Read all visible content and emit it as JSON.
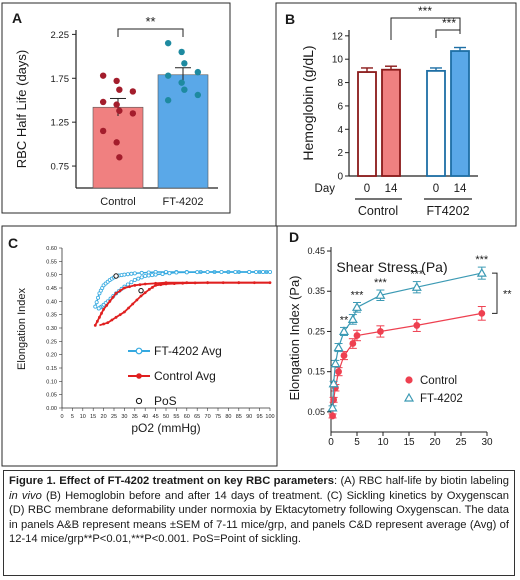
{
  "chart_data": [
    {
      "panel": "A",
      "type": "bar",
      "ylabel": "RBC Half Life (days)",
      "ylim": [
        0.5,
        2.3
      ],
      "yticks": [
        "0.75",
        "1.25",
        "1.75",
        "2.25"
      ],
      "categories": [
        "Control",
        "FT-4202"
      ],
      "values": [
        1.42,
        1.79
      ],
      "sem": [
        0.1,
        0.08
      ],
      "colors": [
        "#f08080",
        "#5aa8e8"
      ],
      "points": [
        [
          1.78,
          1.72,
          1.62,
          1.6,
          1.48,
          1.45,
          1.38,
          1.35,
          1.15,
          1.02,
          0.85
        ],
        [
          2.15,
          2.05,
          1.92,
          1.82,
          1.78,
          1.7,
          1.62,
          1.56,
          1.5
        ]
      ],
      "point_colors": [
        "#a31d2c",
        "#1e8aa0"
      ],
      "significance": "**"
    },
    {
      "panel": "B",
      "type": "bar",
      "ylabel": "Hemoglobin (g/dL)",
      "ylim": [
        0,
        12.5
      ],
      "yticks": [
        "0",
        "2",
        "4",
        "6",
        "8",
        "10",
        "12"
      ],
      "day_label": "Day",
      "categories": [
        "0",
        "14",
        "0",
        "14"
      ],
      "groups": [
        "Control",
        "FT4202"
      ],
      "values": [
        8.9,
        9.1,
        9.0,
        10.7
      ],
      "sem": [
        0.35,
        0.3,
        0.25,
        0.3
      ],
      "fill": [
        "#ffffff",
        "#f08080",
        "#ffffff",
        "#5aa8e8"
      ],
      "stroke": [
        "#8b1a1a",
        "#8b1a1a",
        "#1e6fa5",
        "#1e6fa5"
      ],
      "significance": [
        "***",
        "***"
      ]
    },
    {
      "panel": "C",
      "type": "line",
      "xlabel": "pO2 (mmHg)",
      "ylabel": "Elongation Index",
      "xlim": [
        0,
        100
      ],
      "ylim": [
        0,
        0.6
      ],
      "xticks": [
        "0",
        "5",
        "10",
        "15",
        "20",
        "25",
        "30",
        "35",
        "40",
        "45",
        "50",
        "55",
        "60",
        "65",
        "70",
        "75",
        "80",
        "85",
        "90",
        "95",
        "100"
      ],
      "yticks": [
        "0.00",
        "0.05",
        "0.10",
        "0.15",
        "0.20",
        "0.25",
        "0.30",
        "0.35",
        "0.40",
        "0.45",
        "0.50",
        "0.55",
        "0.60"
      ],
      "series": [
        {
          "name": "FT-4202 Avg",
          "color": "#35a9e0",
          "deoxygenation": [
            [
              16,
              0.38
            ],
            [
              18,
              0.43
            ],
            [
              20,
              0.46
            ],
            [
              23,
              0.48
            ],
            [
              26,
              0.495
            ],
            [
              30,
              0.5
            ],
            [
              35,
              0.505
            ],
            [
              45,
              0.51
            ],
            [
              60,
              0.51
            ],
            [
              80,
              0.51
            ],
            [
              95,
              0.51
            ],
            [
              100,
              0.51
            ]
          ],
          "reoxygenation": [
            [
              100,
              0.51
            ],
            [
              90,
              0.51
            ],
            [
              70,
              0.51
            ],
            [
              55,
              0.508
            ],
            [
              45,
              0.5
            ],
            [
              40,
              0.495
            ],
            [
              35,
              0.48
            ],
            [
              30,
              0.455
            ],
            [
              26,
              0.43
            ],
            [
              22,
              0.4
            ],
            [
              19,
              0.38
            ],
            [
              17,
              0.37
            ]
          ]
        },
        {
          "name": "Control  Avg",
          "color": "#e02020",
          "deoxygenation": [
            [
              16,
              0.31
            ],
            [
              18,
              0.34
            ],
            [
              20,
              0.37
            ],
            [
              23,
              0.4
            ],
            [
              26,
              0.43
            ],
            [
              30,
              0.45
            ],
            [
              35,
              0.46
            ],
            [
              40,
              0.465
            ],
            [
              50,
              0.47
            ],
            [
              70,
              0.47
            ],
            [
              100,
              0.47
            ]
          ],
          "reoxygenation": [
            [
              100,
              0.47
            ],
            [
              85,
              0.47
            ],
            [
              70,
              0.47
            ],
            [
              58,
              0.468
            ],
            [
              50,
              0.465
            ],
            [
              45,
              0.46
            ],
            [
              42,
              0.445
            ],
            [
              38,
              0.42
            ],
            [
              34,
              0.39
            ],
            [
              30,
              0.36
            ],
            [
              26,
              0.34
            ],
            [
              22,
              0.32
            ],
            [
              18,
              0.31
            ]
          ]
        }
      ],
      "pos": {
        "name": "PoS",
        "points": [
          [
            26,
            0.495
          ],
          [
            38,
            0.44
          ]
        ]
      }
    },
    {
      "panel": "D",
      "type": "line",
      "xlabel": "Shear Stress (Pa)",
      "ylabel": "Elongation Index (Pa)",
      "xlim": [
        0,
        30
      ],
      "ylim": [
        0,
        0.46
      ],
      "xticks": [
        "0",
        "5",
        "10",
        "15",
        "20",
        "25",
        "30"
      ],
      "yticks": [
        "0.05",
        "0.15",
        "0.25",
        "0.35",
        "0.45"
      ],
      "x": [
        0.3,
        0.5,
        0.85,
        1.45,
        2.5,
        4.2,
        5,
        9.5,
        16.5,
        29
      ],
      "series": [
        {
          "name": "Control",
          "color": "#ee4050",
          "marker": "circle",
          "values": [
            0.04,
            0.08,
            0.11,
            0.15,
            0.19,
            0.22,
            0.24,
            0.25,
            0.265,
            0.295
          ]
        },
        {
          "name": "FT-4202",
          "color": "#3c9ab4",
          "marker": "triangle",
          "values": [
            0.06,
            0.12,
            0.17,
            0.21,
            0.25,
            0.28,
            0.31,
            0.34,
            0.36,
            0.395
          ]
        }
      ],
      "sem_control": [
        0.005,
        0.006,
        0.008,
        0.01,
        0.01,
        0.012,
        0.013,
        0.014,
        0.015,
        0.017
      ],
      "sem_ft": [
        0.005,
        0.006,
        0.008,
        0.01,
        0.01,
        0.012,
        0.012,
        0.013,
        0.014,
        0.015
      ],
      "significance_points": [
        {
          "x": 2.5,
          "label": "**"
        },
        {
          "x": 5,
          "label": "***"
        },
        {
          "x": 9.5,
          "label": "***"
        },
        {
          "x": 16.5,
          "label": "***"
        },
        {
          "x": 29,
          "label": "***"
        }
      ],
      "bracket_label": "**"
    }
  ],
  "caption": {
    "bold": "Figure 1. Effect of FT-4202 treatment on key RBC parameters",
    "text1": ": (A) RBC half-life by biotin labeling ",
    "italic": "in vivo",
    "text2": " (B) Hemoglobin before and after 14 days of treatment. (C) Sickling kinetics by Oxygenscan (D) RBC membrane deformability under normoxia by Ektacytometry following Oxygenscan. The data in panels A&B represent means ±SEM of 7-11 mice/grp, and panels C&D represent average (Avg) of 12-14 mice/grp**P<0.01,***P<0.001. PoS=Point of sickling."
  }
}
